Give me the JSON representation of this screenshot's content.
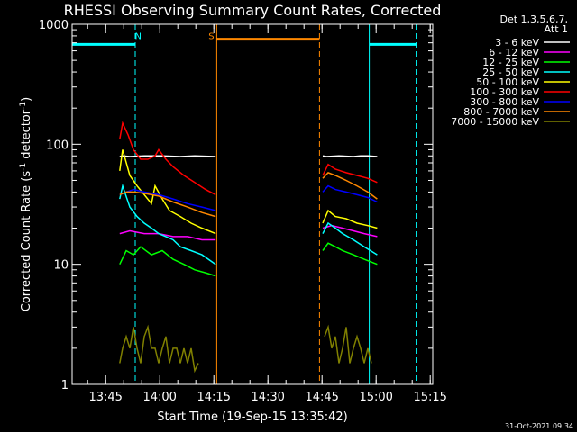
{
  "chart_data": {
    "type": "line",
    "title": "RHESSI Observing Summary Count Rates, Corrected",
    "xlabel": "Start Time (19-Sep-15 13:35:42)",
    "ylabel_main": "Corrected Count Rate (s",
    "ylabel_sup1": "-1",
    "ylabel_mid": " detector",
    "ylabel_sup2": "-1",
    "ylabel_end": ")",
    "ylog": true,
    "ylim": [
      1,
      1000
    ],
    "xlim_minutes": [
      0,
      100
    ],
    "xticks": [
      {
        "label": "13:45",
        "t": 9.3
      },
      {
        "label": "14:00",
        "t": 24.3
      },
      {
        "label": "14:15",
        "t": 39.3
      },
      {
        "label": "14:30",
        "t": 54.3
      },
      {
        "label": "14:45",
        "t": 69.3
      },
      {
        "label": "15:00",
        "t": 84.3
      },
      {
        "label": "15:15",
        "t": 99.3
      }
    ],
    "yticks": [
      {
        "label": "1000",
        "v": 1000
      },
      {
        "label": "100",
        "v": 100
      },
      {
        "label": "10",
        "v": 10
      },
      {
        "label": "1",
        "v": 1
      }
    ],
    "legend_header": [
      "Det 1,3,5,6,7,",
      "Att 1"
    ],
    "legend": [
      {
        "name": "3 - 6 keV",
        "color": "#ffffff"
      },
      {
        "name": "6 - 12 keV",
        "color": "#ff00ff"
      },
      {
        "name": "12 - 25 keV",
        "color": "#00ff00"
      },
      {
        "name": "25 - 50 keV",
        "color": "#00ffff"
      },
      {
        "name": "50 - 100 keV",
        "color": "#ffff00"
      },
      {
        "name": "100 - 300 keV",
        "color": "#ff0000"
      },
      {
        "name": "300 - 800 keV",
        "color": "#0000ff"
      },
      {
        "name": "800 - 7000 keV",
        "color": "#ff8800"
      },
      {
        "name": "7000 - 15000 keV",
        "color": "#808000"
      }
    ],
    "series": [
      {
        "color": "#ffffff",
        "segments": [
          {
            "t": [
              13.2,
              14,
              16,
              20,
              25,
              30,
              34,
              39.8
            ],
            "y": [
              79,
              80,
              79,
              80,
              80,
              79,
              80,
              79
            ]
          },
          {
            "t": [
              69.5,
              70.5,
              74,
              78,
              80,
              82,
              84.6
            ],
            "y": [
              80,
              79,
              80,
              79,
              80,
              80,
              79
            ]
          }
        ]
      },
      {
        "color": "#ff00ff",
        "segments": [
          {
            "t": [
              13.2,
              16,
              20,
              24,
              28,
              32,
              36,
              39.8
            ],
            "y": [
              18,
              19,
              18,
              18,
              17,
              17,
              16,
              16
            ]
          },
          {
            "t": [
              69.5,
              72,
              75,
              78,
              81,
              84.6
            ],
            "y": [
              20,
              21,
              20,
              19,
              18,
              17
            ]
          }
        ]
      },
      {
        "color": "#00ff00",
        "segments": [
          {
            "t": [
              13.2,
              15,
              17,
              19,
              22,
              25,
              28,
              31,
              34,
              37,
              39.8
            ],
            "y": [
              10,
              13,
              12,
              14,
              12,
              13,
              11,
              10,
              9,
              8.5,
              8
            ]
          },
          {
            "t": [
              69.5,
              71,
              73,
              75,
              78,
              81,
              84.6
            ],
            "y": [
              13,
              15,
              14,
              13,
              12,
              11,
              10
            ]
          }
        ]
      },
      {
        "color": "#00ffff",
        "segments": [
          {
            "t": [
              13.2,
              14,
              16,
              18,
              20,
              22,
              24,
              26,
              28,
              30,
              33,
              36,
              39.8
            ],
            "y": [
              35,
              45,
              30,
              25,
              22,
              20,
              18,
              17,
              16,
              14,
              13,
              12,
              10
            ]
          },
          {
            "t": [
              69.5,
              71,
              73,
              75,
              78,
              81,
              84.6
            ],
            "y": [
              18,
              22,
              20,
              18,
              16,
              14,
              12
            ]
          }
        ]
      },
      {
        "color": "#ffff00",
        "segments": [
          {
            "t": [
              13.2,
              14,
              16,
              18,
              20,
              22,
              23,
              25,
              27,
              30,
              33,
              36,
              39.8
            ],
            "y": [
              60,
              90,
              55,
              45,
              38,
              32,
              45,
              35,
              28,
              25,
              22,
              20,
              18
            ]
          },
          {
            "t": [
              69.5,
              71,
              73,
              76,
              79,
              82,
              84.6
            ],
            "y": [
              22,
              28,
              25,
              24,
              22,
              21,
              20
            ]
          }
        ]
      },
      {
        "color": "#ff0000",
        "segments": [
          {
            "t": [
              13.2,
              14,
              15.5,
              17,
              19,
              21,
              23,
              24,
              26,
              28,
              31,
              34,
              37,
              39.8
            ],
            "y": [
              110,
              150,
              120,
              90,
              75,
              75,
              80,
              90,
              75,
              65,
              55,
              48,
              42,
              38
            ]
          },
          {
            "t": [
              69.5,
              71,
              73,
              76,
              79,
              82,
              84.6
            ],
            "y": [
              55,
              68,
              62,
              58,
              55,
              52,
              48
            ]
          }
        ]
      },
      {
        "color": "#0000ff",
        "segments": [
          {
            "t": [
              13.2,
              15,
              17,
              20,
              24,
              28,
              32,
              36,
              39.8
            ],
            "y": [
              38,
              40,
              42,
              40,
              38,
              35,
              32,
              30,
              28
            ]
          },
          {
            "t": [
              69.5,
              71,
              73,
              76,
              79,
              82,
              84.6
            ],
            "y": [
              40,
              45,
              42,
              40,
              38,
              36,
              33
            ]
          }
        ]
      },
      {
        "color": "#ff8800",
        "segments": [
          {
            "t": [
              13.2,
              15,
              17,
              20,
              24,
              28,
              32,
              36,
              39.8
            ],
            "y": [
              38,
              40,
              40,
              39,
              37,
              33,
              30,
              27,
              25
            ]
          },
          {
            "t": [
              69.5,
              71,
              73,
              76,
              79,
              82,
              84.6
            ],
            "y": [
              52,
              58,
              55,
              50,
              45,
              40,
              35
            ]
          }
        ]
      },
      {
        "color": "#808000",
        "segments": [
          {
            "t": [
              13.2,
              14,
              15,
              16,
              17,
              18,
              19,
              20,
              21,
              22,
              23,
              24,
              25,
              26,
              27,
              28,
              29,
              30,
              31,
              32,
              33,
              34,
              35
            ],
            "y": [
              1.5,
              2,
              2.5,
              2,
              3,
              2,
              1.5,
              2.5,
              3,
              2,
              2,
              1.5,
              2,
              2.5,
              1.5,
              2,
              2,
              1.5,
              2,
              1.5,
              2,
              1.3,
              1.5
            ]
          },
          {
            "t": [
              70,
              71,
              72,
              73,
              74,
              75,
              76,
              77,
              78,
              79,
              80,
              81,
              82,
              83
            ],
            "y": [
              2.5,
              3,
              2,
              2.5,
              1.5,
              2,
              3,
              1.5,
              2,
              2.5,
              2,
              1.5,
              2,
              1.5
            ]
          }
        ]
      }
    ],
    "flags": [
      {
        "label": "N",
        "color": "#00ffff",
        "label_t": 18.3,
        "label_v": 700,
        "segments": [
          {
            "t0": 0,
            "t1": 17.5,
            "v": 680
          },
          {
            "t0": 82.4,
            "t1": 95.4,
            "v": 680
          }
        ],
        "solid_lines": [
          0,
          82.4
        ],
        "dashed_lines": [
          17.5,
          95.4
        ]
      },
      {
        "label": "S",
        "color": "#ff8800",
        "label_t": 38.6,
        "label_v": 700,
        "segments": [
          {
            "t0": 40.1,
            "t1": 68.6,
            "v": 750
          }
        ],
        "solid_lines": [
          40.1
        ],
        "dashed_lines": [
          68.6
        ]
      }
    ],
    "footer_date": "31-Oct-2021 09:34"
  }
}
